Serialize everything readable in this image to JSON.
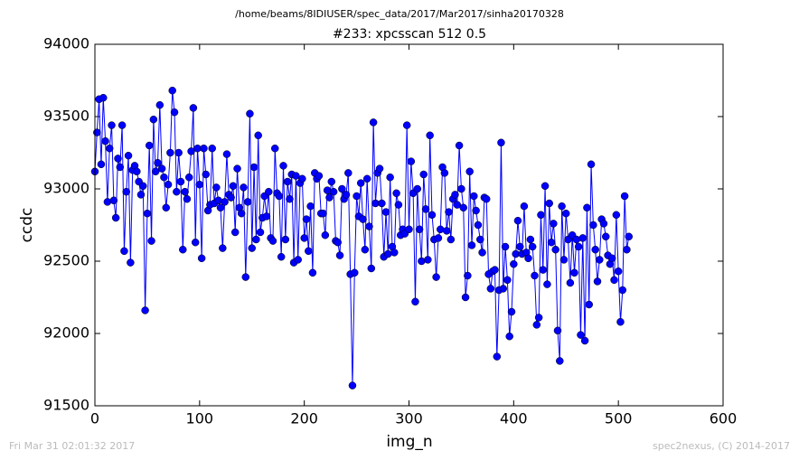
{
  "chart_data": {
    "type": "line",
    "suptitle": "/home/beams/8IDIUSER/spec_data/2017/Mar2017/sinha20170328",
    "title": "#233: xpcsscan 512 0.5",
    "xlabel": "img_n",
    "ylabel": "ccdc",
    "footer_left": "Fri Mar 31 02:01:32 2017",
    "footer_right": "spec2nexus, (C) 2014-2017",
    "color": "#0000ff",
    "xlim": [
      0,
      600
    ],
    "xticks": [
      0,
      100,
      200,
      300,
      400,
      500,
      600
    ],
    "ylim": [
      91500,
      94000
    ],
    "yticks": [
      91500,
      92000,
      92500,
      93000,
      93500,
      94000
    ],
    "x": [
      0,
      2,
      4,
      6,
      8,
      10,
      12,
      14,
      16,
      18,
      20,
      22,
      24,
      26,
      28,
      30,
      32,
      34,
      36,
      38,
      40,
      42,
      44,
      46,
      48,
      50,
      52,
      54,
      56,
      58,
      60,
      62,
      64,
      66,
      68,
      70,
      72,
      74,
      76,
      78,
      80,
      82,
      84,
      86,
      88,
      90,
      92,
      94,
      96,
      98,
      100,
      102,
      104,
      106,
      108,
      110,
      112,
      114,
      116,
      118,
      120,
      122,
      124,
      126,
      128,
      130,
      132,
      134,
      136,
      138,
      140,
      142,
      144,
      146,
      148,
      150,
      152,
      154,
      156,
      158,
      160,
      162,
      164,
      166,
      168,
      170,
      172,
      174,
      176,
      178,
      180,
      182,
      184,
      186,
      188,
      190,
      192,
      194,
      196,
      198,
      200,
      202,
      204,
      206,
      208,
      210,
      212,
      214,
      216,
      218,
      220,
      222,
      224,
      226,
      228,
      230,
      232,
      234,
      236,
      238,
      240,
      242,
      244,
      246,
      248,
      250,
      252,
      254,
      256,
      258,
      260,
      262,
      264,
      266,
      268,
      270,
      272,
      274,
      276,
      278,
      280,
      282,
      284,
      286,
      288,
      290,
      292,
      294,
      296,
      298,
      300,
      302,
      304,
      306,
      308,
      310,
      312,
      314,
      316,
      318,
      320,
      322,
      324,
      326,
      328,
      330,
      332,
      334,
      336,
      338,
      340,
      342,
      344,
      346,
      348,
      350,
      352,
      354,
      356,
      358,
      360,
      362,
      364,
      366,
      368,
      370,
      372,
      374,
      376,
      378,
      380,
      382,
      384,
      386,
      388,
      390,
      392,
      394,
      396,
      398,
      400,
      402,
      404,
      406,
      408,
      410,
      412,
      414,
      416,
      418,
      420,
      422,
      424,
      426,
      428,
      430,
      432,
      434,
      436,
      438,
      440,
      442,
      444,
      446,
      448,
      450,
      452,
      454,
      456,
      458,
      460,
      462,
      464,
      466,
      468,
      470,
      472,
      474,
      476,
      478,
      480,
      482,
      484,
      486,
      488,
      490,
      492,
      494,
      496,
      498,
      500,
      502,
      504,
      506,
      508,
      510
    ],
    "values": [
      93120,
      93390,
      93620,
      93170,
      93630,
      93330,
      92910,
      93280,
      93440,
      92920,
      92800,
      93210,
      93150,
      93440,
      92570,
      92980,
      93230,
      92490,
      93130,
      93160,
      93120,
      93050,
      92960,
      93020,
      92160,
      92830,
      93300,
      92640,
      93480,
      93120,
      93180,
      93580,
      93140,
      93080,
      92870,
      93030,
      93250,
      93680,
      93530,
      92980,
      93250,
      93050,
      92580,
      92980,
      92930,
      93080,
      93260,
      93560,
      92630,
      93280,
      93030,
      92520,
      93280,
      93100,
      92850,
      92890,
      93280,
      92900,
      93010,
      92920,
      92870,
      92590,
      92910,
      93240,
      92960,
      92940,
      93020,
      92700,
      93140,
      92870,
      92830,
      93010,
      92390,
      92910,
      93520,
      92590,
      93150,
      92650,
      93370,
      92700,
      92800,
      92950,
      92810,
      92980,
      92660,
      92640,
      93280,
      92970,
      92950,
      92530,
      93160,
      92650,
      93050,
      92930,
      93100,
      92490,
      93090,
      92510,
      93040,
      93070,
      92660,
      92790,
      92570,
      92880,
      92420,
      93110,
      93070,
      93090,
      92830,
      92830,
      92680,
      92990,
      92940,
      93050,
      92980,
      92640,
      92630,
      92540,
      93000,
      92930,
      92960,
      93110,
      92410,
      91640,
      92420,
      92950,
      92810,
      93040,
      92790,
      92580,
      93070,
      92740,
      92450,
      93460,
      92900,
      93110,
      93140,
      92900,
      92530,
      92840,
      92550,
      93080,
      92600,
      92560,
      92970,
      92890,
      92680,
      92720,
      92690,
      93440,
      92720,
      93190,
      92970,
      92220,
      93000,
      92720,
      92500,
      93100,
      92860,
      92510,
      93370,
      92820,
      92650,
      92390,
      92660,
      92720,
      93150,
      93110,
      92710,
      92840,
      92650,
      92930,
      92960,
      92890,
      93300,
      93000,
      92870,
      92250,
      92400,
      93120,
      92610,
      92950,
      92850,
      92750,
      92650,
      92560,
      92940,
      92930,
      92410,
      92310,
      92430,
      92440,
      91840,
      92300,
      93320,
      92310,
      92600,
      92370,
      91980,
      92150,
      92480,
      92550,
      92780,
      92600,
      92550,
      92880,
      92560,
      92520,
      92650,
      92600,
      92400,
      92060,
      92110,
      92820,
      92440,
      93020,
      92340,
      92900,
      92630,
      92760,
      92580,
      92020,
      91810,
      92880,
      92510,
      92830,
      92650,
      92350,
      92680,
      92420,
      92650,
      92600,
      91990,
      92660,
      91950,
      92870,
      92200,
      93170,
      92750,
      92580,
      92360,
      92510,
      92790,
      92760,
      92670,
      92540,
      92480,
      92520,
      92370,
      92820,
      92430,
      92080,
      92300,
      92950,
      92580,
      92670
    ]
  }
}
